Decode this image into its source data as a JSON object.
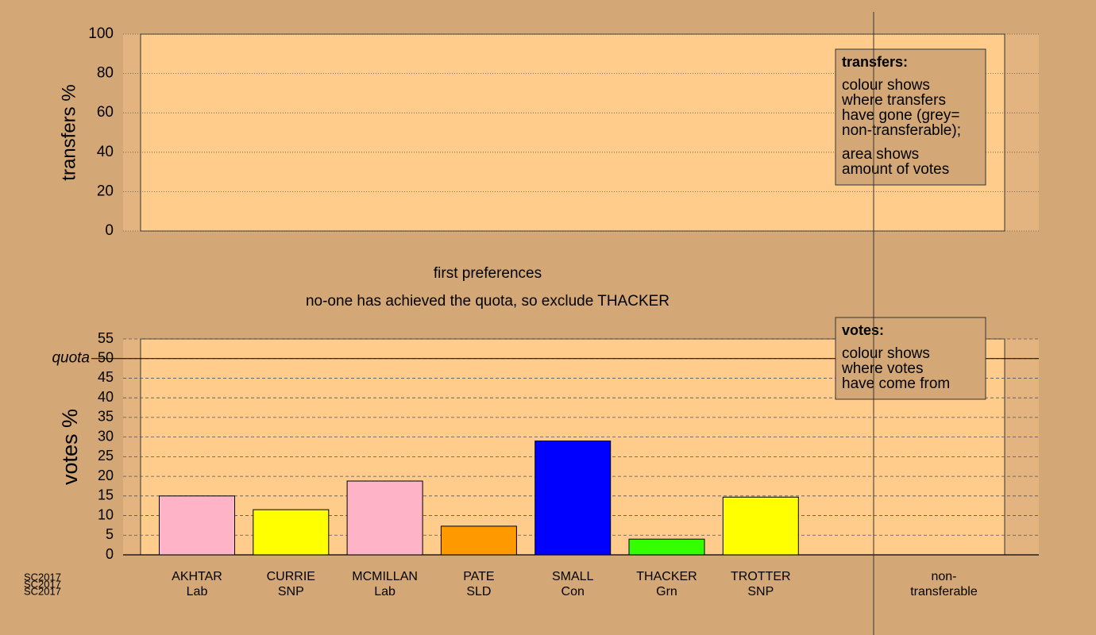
{
  "chart_data": [
    {
      "type": "bar",
      "ylabel": "transfers %",
      "ylim": [
        0,
        100
      ],
      "yticks": [
        0,
        20,
        40,
        60,
        80,
        100
      ],
      "grid": true,
      "legend": {
        "title": "transfers:",
        "lines": [
          "colour shows",
          "where transfers",
          "have gone (grey=",
          "non-transferable);",
          "area shows",
          "amount of votes"
        ]
      }
    },
    {
      "type": "bar",
      "title": "first preferences",
      "subtitle": "no-one has achieved the quota, so exclude THACKER",
      "ylabel": "votes %",
      "ylim": [
        0,
        55
      ],
      "yticks": [
        0,
        5,
        10,
        15,
        20,
        25,
        30,
        35,
        40,
        45,
        50,
        55
      ],
      "grid": true,
      "quota": 50,
      "quota_label": "quota",
      "categories": [
        [
          "AKHTAR",
          "Lab"
        ],
        [
          "CURRIE",
          "SNP"
        ],
        [
          "MCMILLAN",
          "Lab"
        ],
        [
          "PATE",
          "SLD"
        ],
        [
          "SMALL",
          "Con"
        ],
        [
          "THACKER",
          "Grn"
        ],
        [
          "TROTTER",
          "SNP"
        ],
        [
          "non-",
          "transferable"
        ]
      ],
      "values": [
        15,
        11.5,
        18.8,
        7.3,
        29,
        4,
        14.7,
        0
      ],
      "colors": [
        "#ffb3c6",
        "#ffff00",
        "#ffb3c6",
        "#ff9900",
        "#0000ff",
        "#33ff00",
        "#ffff00",
        "#999999"
      ],
      "legend": {
        "title": "votes:",
        "lines": [
          "colour shows",
          "where votes",
          "have come from"
        ]
      }
    }
  ],
  "footer": "SC2017"
}
